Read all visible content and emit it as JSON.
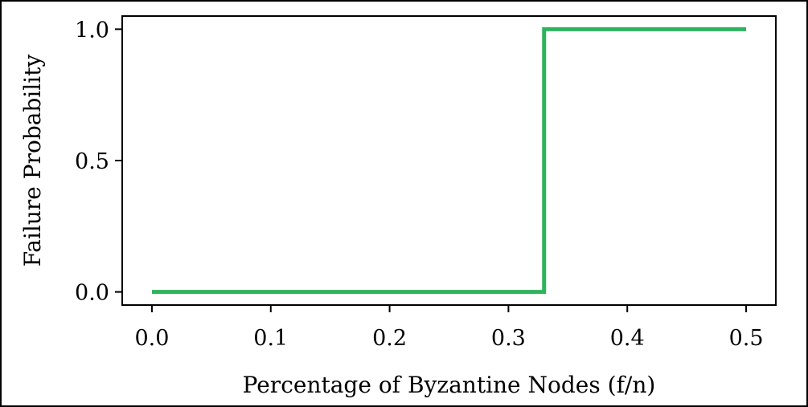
{
  "chart_data": {
    "type": "line",
    "title": "",
    "xlabel": "Percentage of Byzantine Nodes (f/n)",
    "ylabel": "Failure Probability",
    "xlim": [
      -0.025,
      0.525
    ],
    "ylim": [
      -0.05,
      1.05
    ],
    "x_ticks": [
      "0.0",
      "0.1",
      "0.2",
      "0.3",
      "0.4",
      "0.5"
    ],
    "y_ticks": [
      "0.0",
      "0.5",
      "1.0"
    ],
    "grid": false,
    "legend": "none",
    "series": [
      {
        "color": "#2db35d",
        "x": [
          0.0,
          0.33,
          0.33,
          0.5
        ],
        "y": [
          0.0,
          0.0,
          1.0,
          1.0
        ]
      }
    ]
  }
}
